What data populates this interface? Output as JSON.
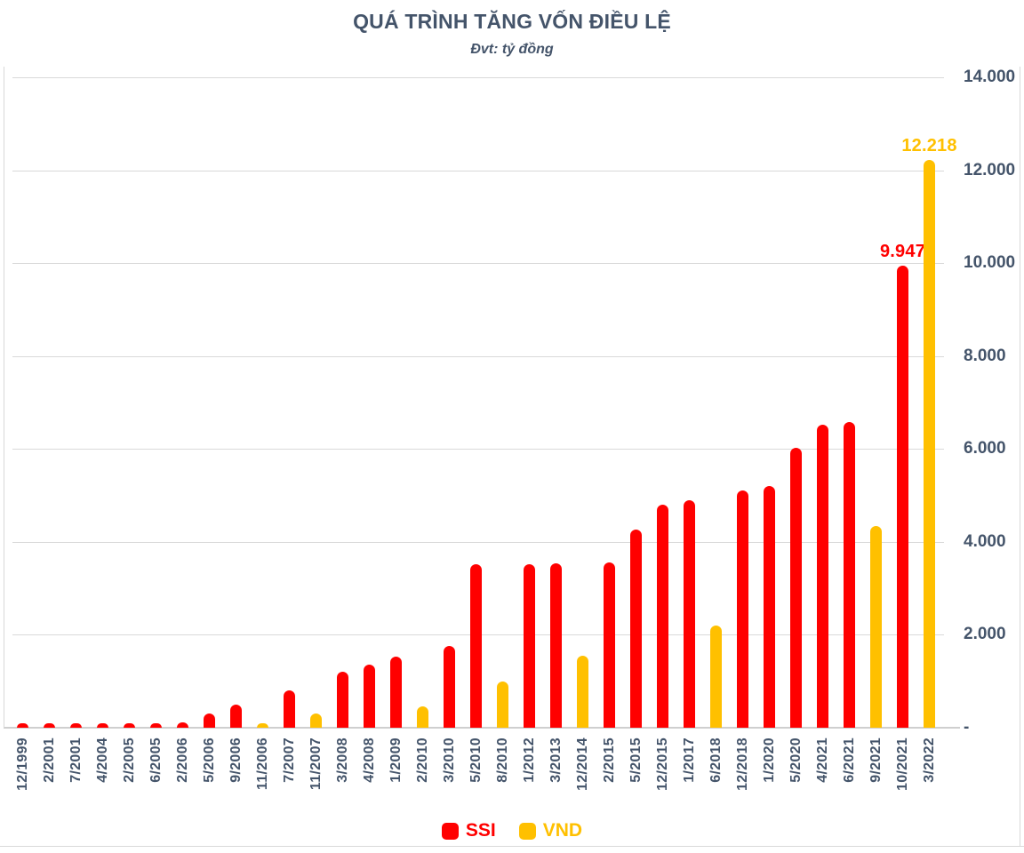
{
  "chart_data": {
    "type": "bar",
    "title": "QUÁ TRÌNH TĂNG VỐN ĐIỀU LỆ",
    "subtitle": "Đvt: tỷ đồng",
    "ylim": [
      0,
      14000
    ],
    "grid": true,
    "legend_position": "bottom",
    "colors": {
      "text": "#44546A",
      "grid": "#D9D9D9",
      "axis": "#CFCFCF",
      "ssi": "#FF0000",
      "vnd": "#FFC000"
    },
    "yticks": [
      {
        "label": "14.000",
        "value": 14000
      },
      {
        "label": "12.000",
        "value": 12000
      },
      {
        "label": "10.000",
        "value": 10000
      },
      {
        "label": "8.000",
        "value": 8000
      },
      {
        "label": "6.000",
        "value": 6000
      },
      {
        "label": "4.000",
        "value": 4000
      },
      {
        "label": "2.000",
        "value": 2000
      },
      {
        "label": "-",
        "value": 0
      }
    ],
    "legend": [
      {
        "name": "SSI",
        "color": "#FF0000"
      },
      {
        "name": "VND",
        "color": "#FFC000"
      }
    ],
    "points": [
      {
        "x": "12/1999",
        "series": "SSI",
        "value": 6
      },
      {
        "x": "2/2001",
        "series": "SSI",
        "value": 9
      },
      {
        "x": "7/2001",
        "series": "SSI",
        "value": 20
      },
      {
        "x": "4/2004",
        "series": "SSI",
        "value": 23
      },
      {
        "x": "2/2005",
        "series": "SSI",
        "value": 26
      },
      {
        "x": "6/2005",
        "series": "SSI",
        "value": 52
      },
      {
        "x": "2/2006",
        "series": "SSI",
        "value": 120
      },
      {
        "x": "5/2006",
        "series": "SSI",
        "value": 300
      },
      {
        "x": "9/2006",
        "series": "SSI",
        "value": 500
      },
      {
        "x": "11/2006",
        "series": "VND",
        "value": 50
      },
      {
        "x": "7/2007",
        "series": "SSI",
        "value": 800
      },
      {
        "x": "11/2007",
        "series": "VND",
        "value": 300
      },
      {
        "x": "3/2008",
        "series": "SSI",
        "value": 1200
      },
      {
        "x": "4/2008",
        "series": "SSI",
        "value": 1366
      },
      {
        "x": "1/2009",
        "series": "SSI",
        "value": 1533
      },
      {
        "x": "2/2010",
        "series": "VND",
        "value": 450
      },
      {
        "x": "3/2010",
        "series": "SSI",
        "value": 1755
      },
      {
        "x": "5/2010",
        "series": "SSI",
        "value": 3511
      },
      {
        "x": "8/2010",
        "series": "VND",
        "value": 1000
      },
      {
        "x": "1/2012",
        "series": "SSI",
        "value": 3526
      },
      {
        "x": "3/2013",
        "series": "SSI",
        "value": 3537
      },
      {
        "x": "12/2014",
        "series": "VND",
        "value": 1550
      },
      {
        "x": "2/2015",
        "series": "SSI",
        "value": 3561
      },
      {
        "x": "5/2015",
        "series": "SSI",
        "value": 4267
      },
      {
        "x": "12/2015",
        "series": "SSI",
        "value": 4800
      },
      {
        "x": "1/2017",
        "series": "SSI",
        "value": 4900
      },
      {
        "x": "6/2018",
        "series": "VND",
        "value": 2204
      },
      {
        "x": "12/2018",
        "series": "SSI",
        "value": 5100
      },
      {
        "x": "1/2020",
        "series": "SSI",
        "value": 5201
      },
      {
        "x": "5/2020",
        "series": "SSI",
        "value": 6029
      },
      {
        "x": "4/2021",
        "series": "SSI",
        "value": 6514
      },
      {
        "x": "6/2021",
        "series": "SSI",
        "value": 6573
      },
      {
        "x": "9/2021",
        "series": "VND",
        "value": 4349
      },
      {
        "x": "10/2021",
        "series": "SSI",
        "value": 9947,
        "label": "9.947"
      },
      {
        "x": "3/2022",
        "series": "VND",
        "value": 12218,
        "label": "12.218"
      }
    ]
  }
}
